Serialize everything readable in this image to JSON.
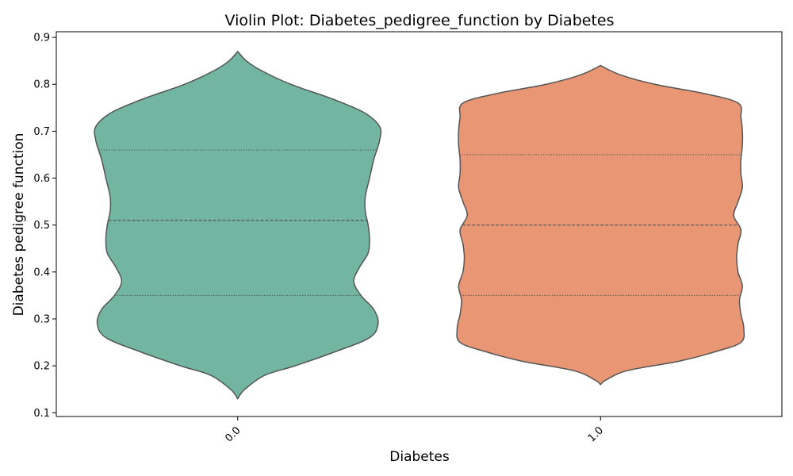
{
  "chart_data": {
    "type": "violin",
    "title": "Violin Plot: Diabetes_pedigree_function by Diabetes",
    "xlabel": "Diabetes",
    "ylabel": "Diabetes pedigree function",
    "categories": [
      "0.0",
      "1.0"
    ],
    "ylim": [
      0.092,
      0.912
    ],
    "yticks": [
      0.1,
      0.2,
      0.3,
      0.4,
      0.5,
      0.6,
      0.7,
      0.8,
      0.9
    ],
    "ytick_labels": [
      "0.1",
      "0.2",
      "0.3",
      "0.4",
      "0.5",
      "0.6",
      "0.7",
      "0.8",
      "0.9"
    ],
    "grid": false,
    "violins": [
      {
        "category": "0.0",
        "color": "#72b5a1",
        "min": 0.13,
        "max": 0.87,
        "q1": 0.35,
        "median": 0.51,
        "q3": 0.66,
        "density_profile": [
          [
            0.13,
            0.0
          ],
          [
            0.15,
            0.05
          ],
          [
            0.18,
            0.19
          ],
          [
            0.2,
            0.4
          ],
          [
            0.23,
            0.68
          ],
          [
            0.26,
            0.92
          ],
          [
            0.29,
            0.98
          ],
          [
            0.32,
            0.95
          ],
          [
            0.35,
            0.86
          ],
          [
            0.38,
            0.81
          ],
          [
            0.41,
            0.85
          ],
          [
            0.44,
            0.91
          ],
          [
            0.47,
            0.92
          ],
          [
            0.5,
            0.91
          ],
          [
            0.53,
            0.89
          ],
          [
            0.56,
            0.89
          ],
          [
            0.6,
            0.92
          ],
          [
            0.64,
            0.95
          ],
          [
            0.68,
            0.99
          ],
          [
            0.71,
            0.99
          ],
          [
            0.74,
            0.88
          ],
          [
            0.77,
            0.65
          ],
          [
            0.8,
            0.37
          ],
          [
            0.83,
            0.16
          ],
          [
            0.85,
            0.06
          ],
          [
            0.87,
            0.0
          ]
        ]
      },
      {
        "category": "1.0",
        "color": "#e89674",
        "min": 0.16,
        "max": 0.84,
        "q1": 0.35,
        "median": 0.5,
        "q3": 0.65,
        "density_profile": [
          [
            0.16,
            0.0
          ],
          [
            0.17,
            0.04
          ],
          [
            0.19,
            0.19
          ],
          [
            0.21,
            0.55
          ],
          [
            0.23,
            0.8
          ],
          [
            0.25,
            0.98
          ],
          [
            0.28,
            1.0
          ],
          [
            0.31,
            0.98
          ],
          [
            0.34,
            0.97
          ],
          [
            0.37,
            0.99
          ],
          [
            0.4,
            0.96
          ],
          [
            0.43,
            0.95
          ],
          [
            0.46,
            0.96
          ],
          [
            0.49,
            0.98
          ],
          [
            0.52,
            0.93
          ],
          [
            0.55,
            0.96
          ],
          [
            0.58,
            0.99
          ],
          [
            0.61,
            0.98
          ],
          [
            0.64,
            0.98
          ],
          [
            0.67,
            0.99
          ],
          [
            0.7,
            0.99
          ],
          [
            0.73,
            0.98
          ],
          [
            0.76,
            0.96
          ],
          [
            0.78,
            0.73
          ],
          [
            0.8,
            0.38
          ],
          [
            0.82,
            0.14
          ],
          [
            0.84,
            0.0
          ]
        ]
      }
    ],
    "outline_color": "#555555"
  }
}
